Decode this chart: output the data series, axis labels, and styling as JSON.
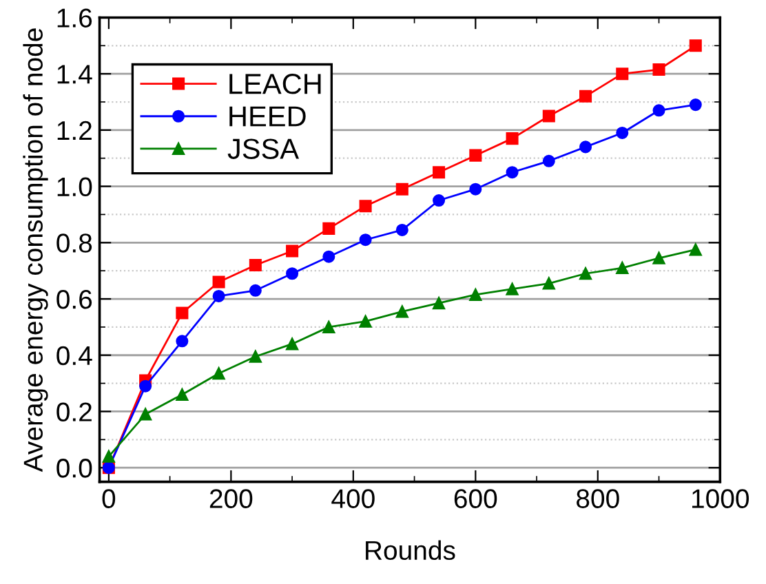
{
  "chart_data": {
    "type": "line",
    "xlabel": "Rounds",
    "ylabel": "Average energy consumption of node",
    "x": [
      0,
      60,
      120,
      180,
      240,
      300,
      360,
      420,
      480,
      540,
      600,
      660,
      720,
      780,
      840,
      900,
      960
    ],
    "series": [
      {
        "name": "LEACH",
        "color": "#ff0000",
        "marker": "square",
        "values": [
          0,
          0.31,
          0.55,
          0.66,
          0.72,
          0.77,
          0.85,
          0.93,
          0.99,
          1.05,
          1.11,
          1.17,
          1.25,
          1.32,
          1.4,
          1.415,
          1.5
        ]
      },
      {
        "name": "HEED",
        "color": "#0000ff",
        "marker": "circle",
        "values": [
          0,
          0.29,
          0.45,
          0.61,
          0.63,
          0.69,
          0.75,
          0.81,
          0.845,
          0.95,
          0.99,
          1.05,
          1.09,
          1.14,
          1.19,
          1.27,
          1.29
        ]
      },
      {
        "name": "JSSA",
        "color": "#008000",
        "marker": "triangle",
        "values": [
          0.04,
          0.19,
          0.26,
          0.335,
          0.395,
          0.44,
          0.5,
          0.52,
          0.555,
          0.585,
          0.615,
          0.635,
          0.655,
          0.69,
          0.71,
          0.745,
          0.775
        ]
      }
    ],
    "xlim": [
      -15,
      1000
    ],
    "xticks": [
      0,
      200,
      400,
      600,
      800,
      1000
    ],
    "ylim": [
      -0.05,
      1.6
    ],
    "yticks": [
      {
        "value": 0,
        "label": "0.0"
      },
      0.2,
      0.4,
      0.6,
      0.8,
      {
        "value": 1.0,
        "label": "1.0"
      },
      1.2,
      1.4,
      1.6
    ],
    "grid": "y",
    "legend": "top left",
    "line_style": "solid"
  }
}
